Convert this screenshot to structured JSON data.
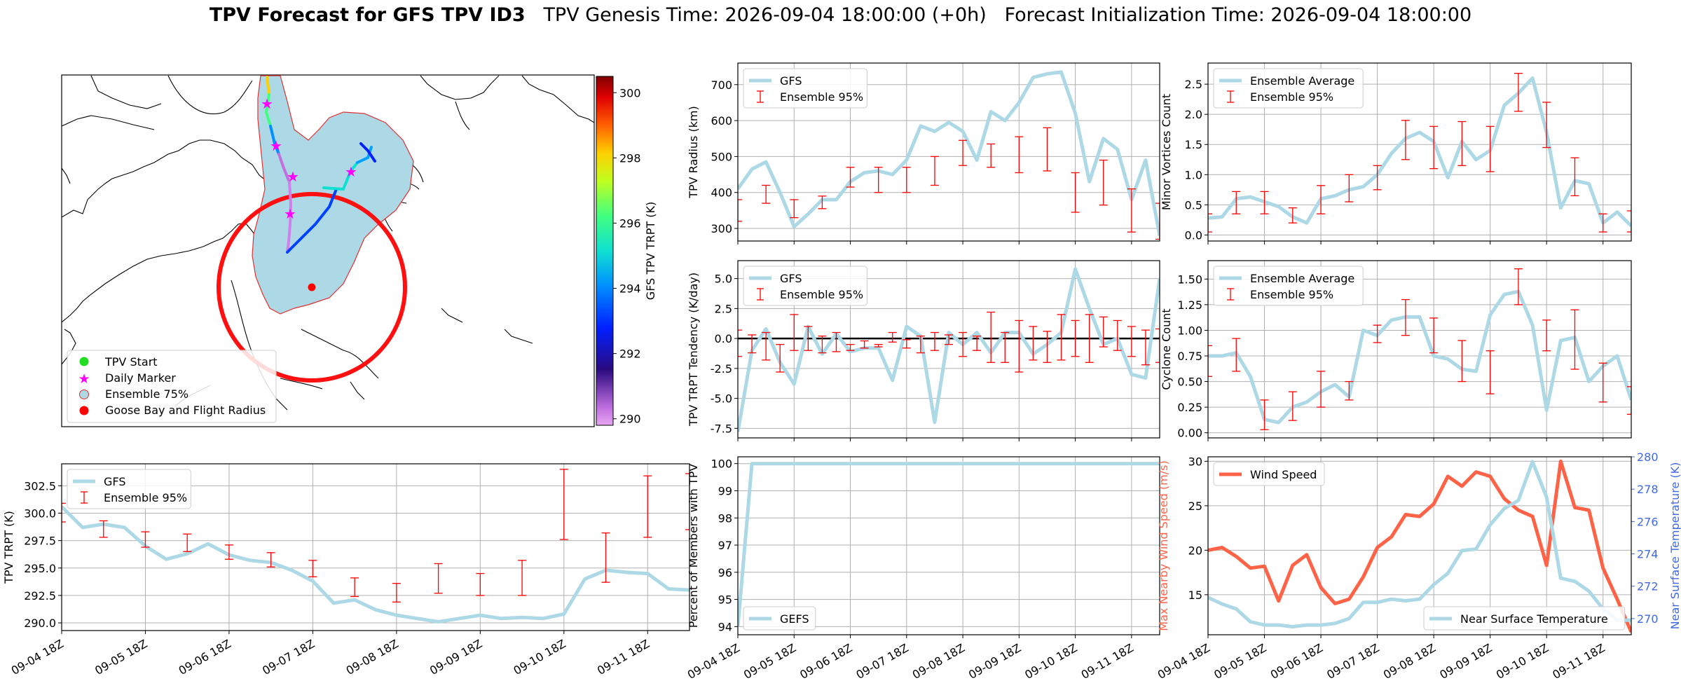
{
  "figure": {
    "title_bold": "TPV Forecast for GFS TPV ID3",
    "title_genesis": "TPV Genesis Time: 2026-09-04 18:00:00 (+0h)",
    "title_init": "Forecast Initialization Time: 2026-09-04 18:00:00"
  },
  "colors": {
    "light_blue": "#add8e6",
    "red": "#ff0000",
    "tomato": "#ff6347",
    "royal_blue": "#4169e1",
    "black": "#000000",
    "grid": "#b0b0b0"
  },
  "date_ticks": [
    "09-04 18Z",
    "09-05 18Z",
    "09-06 18Z",
    "09-07 18Z",
    "09-08 18Z",
    "09-09 18Z",
    "09-10 18Z",
    "09-11 18Z"
  ],
  "map": {
    "colorbar_label": "GFS TPV TRPT (K)",
    "colorbar_ticks": [
      "290",
      "292",
      "294",
      "296",
      "298",
      "300"
    ],
    "colorbar_range": [
      289.8,
      300.5
    ],
    "legend": [
      "TPV Start",
      "Daily Marker",
      "Ensemble 75%",
      "Goose Bay and Flight Radius"
    ]
  },
  "chart_data": [
    {
      "id": "tpv_trpt",
      "type": "line",
      "ylabel": "TPV TRPT (K)",
      "ylim": [
        289.3,
        304.5
      ],
      "yticks": [
        290.0,
        292.5,
        295.0,
        297.5,
        300.0,
        302.5
      ],
      "grid": true,
      "legend_position": "top-left",
      "legend": [
        "GFS",
        "Ensemble 95%"
      ],
      "x": [
        0,
        0.25,
        0.5,
        0.75,
        1,
        1.25,
        1.5,
        1.75,
        2,
        2.25,
        2.5,
        2.75,
        3,
        3.25,
        3.5,
        3.75,
        4,
        4.25,
        4.5,
        4.75,
        5,
        5.25,
        5.5,
        5.75,
        6,
        6.25,
        6.5,
        6.75,
        7,
        7.25,
        7.5
      ],
      "series": [
        {
          "name": "GFS",
          "values": [
            300.6,
            298.7,
            299.0,
            298.7,
            297.0,
            295.8,
            296.3,
            297.2,
            296.2,
            295.7,
            295.5,
            294.8,
            293.8,
            291.8,
            292.1,
            291.2,
            290.7,
            290.4,
            290.1,
            290.4,
            290.7,
            290.4,
            290.5,
            290.4,
            290.8,
            294.0,
            294.8,
            294.6,
            294.5,
            293.1,
            293.0
          ]
        },
        {
          "name": "Ensemble 95%",
          "type": "errorbar",
          "x": [
            0,
            0.5,
            1,
            1.5,
            2,
            2.5,
            3,
            3.5,
            4,
            4.5,
            5,
            5.5,
            6,
            6.5,
            7,
            7.5
          ],
          "low": [
            299.2,
            297.8,
            296.9,
            296.5,
            295.8,
            295.1,
            294.2,
            292.4,
            291.9,
            292.7,
            292.5,
            292.5,
            297.6,
            293.7,
            297.8,
            298.5
          ],
          "high": [
            300.9,
            299.3,
            298.3,
            298.1,
            297.1,
            296.4,
            295.7,
            294.1,
            293.6,
            295.4,
            294.5,
            295.7,
            304.0,
            298.2,
            303.4,
            303.6
          ]
        }
      ]
    },
    {
      "id": "tpv_radius",
      "type": "line",
      "ylabel": "TPV Radius (km)",
      "ylim": [
        265,
        760
      ],
      "yticks": [
        300,
        400,
        500,
        600,
        700
      ],
      "grid": true,
      "legend_position": "top-left",
      "legend": [
        "GFS",
        "Ensemble 95%"
      ],
      "x": [
        0,
        0.25,
        0.5,
        0.75,
        1,
        1.25,
        1.5,
        1.75,
        2,
        2.25,
        2.5,
        2.75,
        3,
        3.25,
        3.5,
        3.75,
        4,
        4.25,
        4.5,
        4.75,
        5,
        5.25,
        5.5,
        5.75,
        6,
        6.25,
        6.5,
        6.75,
        7,
        7.25,
        7.5
      ],
      "series": [
        {
          "name": "GFS",
          "values": [
            410,
            465,
            485,
            400,
            305,
            340,
            380,
            380,
            430,
            455,
            460,
            450,
            490,
            585,
            570,
            595,
            570,
            490,
            625,
            600,
            650,
            720,
            730,
            735,
            620,
            430,
            550,
            520,
            380,
            490,
            280
          ]
        },
        {
          "name": "Ensemble 95%",
          "type": "errorbar",
          "x": [
            0,
            0.5,
            1,
            1.5,
            2,
            2.5,
            3,
            3.5,
            4,
            4.5,
            5,
            5.5,
            6,
            6.5,
            7,
            7.5
          ],
          "low": [
            320,
            370,
            330,
            355,
            415,
            400,
            400,
            420,
            475,
            470,
            455,
            460,
            345,
            365,
            290,
            270
          ],
          "high": [
            380,
            420,
            380,
            390,
            470,
            470,
            470,
            500,
            545,
            535,
            555,
            580,
            455,
            490,
            410,
            370
          ]
        }
      ]
    },
    {
      "id": "trpt_tendency",
      "type": "line",
      "ylabel": "TPV TRPT Tendency (K/day)",
      "ylim": [
        -8.3,
        6.5
      ],
      "yticks": [
        -7.5,
        -5.0,
        -2.5,
        0.0,
        2.5,
        5.0
      ],
      "grid": true,
      "zero_line": true,
      "legend_position": "top-left",
      "legend": [
        "GFS",
        "Ensemble 95%"
      ],
      "x": [
        0,
        0.25,
        0.5,
        0.75,
        1,
        1.25,
        1.5,
        1.75,
        2,
        2.25,
        2.5,
        2.75,
        3,
        3.25,
        3.5,
        3.75,
        4,
        4.25,
        4.5,
        4.75,
        5,
        5.25,
        5.5,
        5.75,
        6,
        6.25,
        6.5,
        6.75,
        7,
        7.25,
        7.5
      ],
      "series": [
        {
          "name": "GFS",
          "values": [
            -7.8,
            -1.0,
            0.8,
            -2.0,
            -3.8,
            1.0,
            -1.3,
            0.4,
            -1.1,
            -0.8,
            -0.8,
            -3.5,
            1.0,
            0.2,
            -7.0,
            0.5,
            -0.5,
            0.5,
            -1.2,
            0.5,
            0.5,
            -1.3,
            -0.5,
            0.5,
            5.8,
            2.5,
            -0.5,
            0.0,
            -3.0,
            -3.3,
            5.0
          ]
        },
        {
          "name": "Ensemble 95%",
          "type": "errorbar",
          "x": [
            0,
            0.25,
            0.5,
            0.75,
            1,
            1.25,
            1.5,
            1.75,
            2,
            2.25,
            2.5,
            2.75,
            3,
            3.25,
            3.5,
            3.75,
            4,
            4.25,
            4.5,
            4.75,
            5,
            5.25,
            5.5,
            5.75,
            6,
            6.25,
            6.5,
            6.75,
            7,
            7.25,
            7.5
          ],
          "low": [
            -1.5,
            -1.2,
            -1.8,
            -2.8,
            -1.0,
            -1.0,
            -1.2,
            -1.1,
            -1.0,
            -0.8,
            -0.7,
            -0.3,
            -0.8,
            -1.2,
            -1.0,
            -0.5,
            -1.5,
            -1.0,
            -2.0,
            -2.0,
            -2.8,
            -1.8,
            -2.0,
            -1.8,
            -1.5,
            -2.0,
            -0.7,
            -1.0,
            -1.5,
            -2.2,
            -2.0
          ]
        },
        {
          "name": "Ensemble 95% high",
          "type": "errorbar_high",
          "values": [
            0.7,
            0.3,
            0.5,
            -0.5,
            2.0,
            1.0,
            0.2,
            0.5,
            -0.5,
            -0.2,
            -0.5,
            0.5,
            -0.1,
            0.2,
            0.5,
            0.3,
            0.5,
            0.2,
            2.2,
            0.5,
            1.5,
            1.0,
            0.6,
            2.0,
            1.5,
            2.0,
            1.8,
            1.5,
            1.0,
            0.7,
            0.8
          ]
        }
      ]
    },
    {
      "id": "percent_members",
      "type": "line",
      "ylabel": "Percent of Members with TPV",
      "ylim": [
        93.7,
        100.25
      ],
      "yticks": [
        94,
        95,
        96,
        97,
        98,
        99,
        100
      ],
      "grid": true,
      "legend_position": "bottom-left",
      "legend": [
        "GEFS"
      ],
      "x": [
        0,
        0.25,
        7.5
      ],
      "series": [
        {
          "name": "GEFS",
          "values": [
            94.0,
            100.0,
            100.0
          ]
        }
      ]
    },
    {
      "id": "minor_vortices",
      "type": "line",
      "ylabel": "Minor Vortices Count",
      "ylim": [
        -0.1,
        2.85
      ],
      "yticks": [
        0.0,
        0.5,
        1.0,
        1.5,
        2.0,
        2.5
      ],
      "grid": true,
      "legend_position": "top-left",
      "legend": [
        "Ensemble Average",
        "Ensemble 95%"
      ],
      "x": [
        0,
        0.25,
        0.5,
        0.75,
        1,
        1.25,
        1.5,
        1.75,
        2,
        2.25,
        2.5,
        2.75,
        3,
        3.25,
        3.5,
        3.75,
        4,
        4.25,
        4.5,
        4.75,
        5,
        5.25,
        5.5,
        5.75,
        6,
        6.25,
        6.5,
        6.75,
        7,
        7.25,
        7.5
      ],
      "series": [
        {
          "name": "Ensemble Average",
          "values": [
            0.28,
            0.3,
            0.6,
            0.63,
            0.55,
            0.47,
            0.3,
            0.2,
            0.6,
            0.65,
            0.75,
            0.8,
            1.0,
            1.35,
            1.6,
            1.7,
            1.55,
            0.95,
            1.55,
            1.25,
            1.4,
            2.15,
            2.35,
            2.6,
            1.7,
            0.45,
            0.9,
            0.85,
            0.2,
            0.38,
            0.15
          ]
        },
        {
          "name": "Ensemble 95%",
          "type": "errorbar",
          "x": [
            0,
            0.5,
            1,
            1.5,
            2,
            2.5,
            3,
            3.5,
            4,
            4.5,
            5,
            5.5,
            6,
            6.5,
            7,
            7.5
          ],
          "low": [
            0.05,
            0.35,
            0.35,
            0.2,
            0.35,
            0.55,
            0.75,
            1.25,
            1.1,
            1.15,
            1.05,
            2.05,
            1.45,
            0.65,
            0.05,
            0.05
          ],
          "high": [
            0.35,
            0.72,
            0.72,
            0.45,
            0.82,
            1.0,
            1.15,
            1.9,
            1.8,
            1.88,
            1.8,
            2.68,
            2.2,
            1.28,
            0.35,
            0.4
          ]
        }
      ]
    },
    {
      "id": "cyclone_count",
      "type": "line",
      "ylabel": "Cyclone Count",
      "ylim": [
        -0.05,
        1.68
      ],
      "yticks": [
        0.0,
        0.25,
        0.5,
        0.75,
        1.0,
        1.25,
        1.5
      ],
      "grid": true,
      "legend_position": "top-left",
      "legend": [
        "Ensemble Average",
        "Ensemble 95%"
      ],
      "x": [
        0,
        0.25,
        0.5,
        0.75,
        1,
        1.25,
        1.5,
        1.75,
        2,
        2.25,
        2.5,
        2.75,
        3,
        3.25,
        3.5,
        3.75,
        4,
        4.25,
        4.5,
        4.75,
        5,
        5.25,
        5.5,
        5.75,
        6,
        6.25,
        6.5,
        6.75,
        7,
        7.25,
        7.5
      ],
      "series": [
        {
          "name": "Ensemble Average",
          "values": [
            0.75,
            0.75,
            0.78,
            0.55,
            0.13,
            0.1,
            0.25,
            0.3,
            0.4,
            0.47,
            0.35,
            1.0,
            0.95,
            1.1,
            1.13,
            1.13,
            0.75,
            0.72,
            0.62,
            0.6,
            1.15,
            1.35,
            1.38,
            1.05,
            0.22,
            0.9,
            0.93,
            0.5,
            0.65,
            0.75,
            0.32
          ]
        },
        {
          "name": "Ensemble 95%",
          "type": "errorbar",
          "x": [
            0,
            0.5,
            1,
            1.5,
            2,
            2.5,
            3,
            3.5,
            4,
            4.5,
            5,
            5.5,
            6,
            6.5,
            7,
            7.5
          ],
          "low": [
            0.55,
            0.6,
            0.03,
            0.12,
            0.25,
            0.32,
            0.88,
            0.95,
            0.78,
            0.5,
            0.38,
            1.25,
            0.8,
            0.62,
            0.3,
            0.18
          ],
          "high": [
            0.85,
            0.92,
            0.32,
            0.4,
            0.6,
            0.5,
            1.05,
            1.3,
            1.12,
            0.9,
            0.8,
            1.6,
            1.1,
            1.2,
            0.68,
            0.45
          ]
        }
      ]
    },
    {
      "id": "wind_temp",
      "type": "line",
      "ylabel": "Max Nearby Wind Speed (m/s)",
      "ylabel_right": "Near Surface Temperature (K)",
      "ylim": [
        10.5,
        30.5
      ],
      "yticks": [
        15,
        20,
        25,
        30
      ],
      "ylim_right": [
        269.0,
        280.0
      ],
      "yticks_right": [
        270,
        272,
        274,
        276,
        278,
        280
      ],
      "grid": true,
      "legend_position": "top-left / bottom-right",
      "legend": [
        "Wind Speed",
        "Near Surface Temperature"
      ],
      "x": [
        0,
        0.25,
        0.5,
        0.75,
        1,
        1.25,
        1.5,
        1.75,
        2,
        2.25,
        2.5,
        2.75,
        3,
        3.25,
        3.5,
        3.75,
        4,
        4.25,
        4.5,
        4.75,
        5,
        5.25,
        5.5,
        5.75,
        6,
        6.25,
        6.5,
        6.75,
        7,
        7.25,
        7.5
      ],
      "series": [
        {
          "name": "Wind Speed",
          "axis": "left",
          "values": [
            20.0,
            20.3,
            19.3,
            18.0,
            18.2,
            14.3,
            18.3,
            19.5,
            15.8,
            14.0,
            14.5,
            17.0,
            20.3,
            21.5,
            24.0,
            23.8,
            25.2,
            28.3,
            27.2,
            28.8,
            28.3,
            25.8,
            24.5,
            23.8,
            18.3,
            30.0,
            24.8,
            24.5,
            18.0,
            14.5,
            10.8
          ]
        },
        {
          "name": "Near Surface Temperature",
          "axis": "right",
          "values": [
            271.3,
            270.9,
            270.6,
            269.8,
            269.6,
            269.6,
            269.5,
            269.6,
            269.6,
            269.7,
            270.0,
            271.0,
            271.0,
            271.2,
            271.1,
            271.2,
            272.1,
            272.8,
            274.2,
            274.3,
            275.8,
            276.8,
            277.3,
            279.7,
            277.5,
            272.5,
            272.3,
            271.7,
            270.6,
            269.9,
            269.9
          ]
        }
      ]
    }
  ]
}
